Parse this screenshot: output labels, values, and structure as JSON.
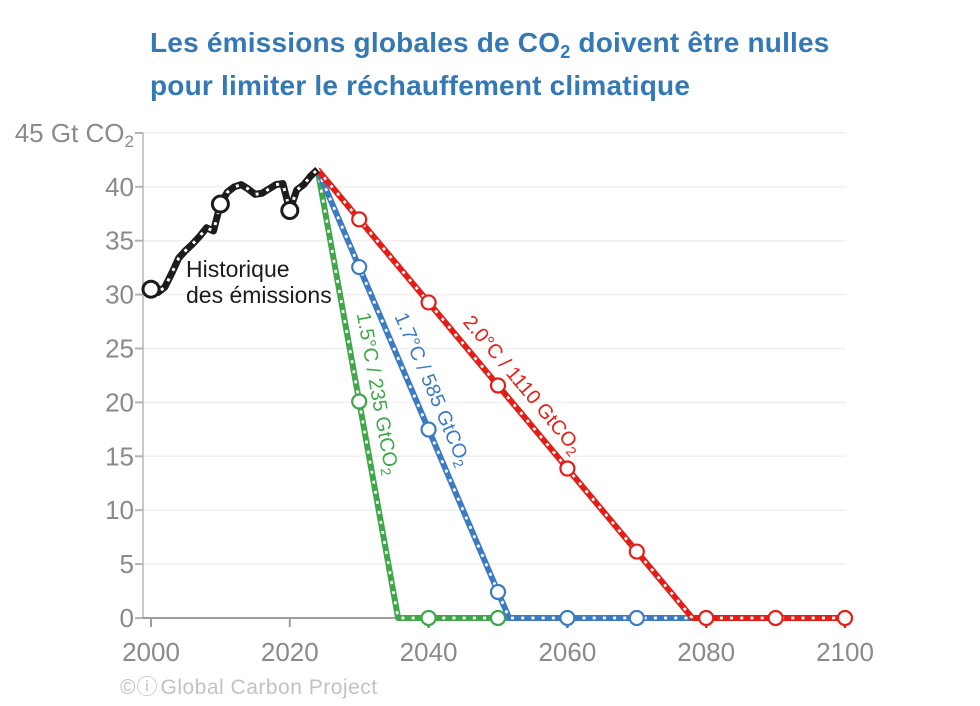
{
  "title": {
    "line1_pre": "Les émissions globales de CO",
    "line1_sub": "2",
    "line1_post": " doivent être nulles",
    "line2": "pour limiter le réchauffement climatique",
    "color": "#3478b6"
  },
  "attribution": {
    "icons": "©ⓘ",
    "text": "Global Carbon Project",
    "color": "#c2c2c2"
  },
  "chart_data": {
    "type": "line",
    "title": "Les émissions globales de CO2 doivent être nulles pour limiter le réchauffement climatique",
    "ylabel_top_main": "45 Gt CO",
    "ylabel_top_sub": "2",
    "y_axis": {
      "range": [
        0,
        45
      ],
      "ticks": [
        0,
        5,
        10,
        15,
        20,
        25,
        30,
        35,
        40,
        45
      ],
      "grid": true
    },
    "x_axis": {
      "range": [
        2000,
        2100
      ],
      "ticks": [
        2000,
        2020,
        2040,
        2060,
        2080,
        2100
      ]
    },
    "historical": {
      "label_line1": "Historique",
      "label_line2": "des émissions",
      "color": "#1c1c1c",
      "years": [
        2000,
        2001,
        2002,
        2003,
        2004,
        2005,
        2006,
        2007,
        2008,
        2009,
        2010,
        2011,
        2012,
        2013,
        2014,
        2015,
        2016,
        2017,
        2018,
        2019,
        2020,
        2021,
        2022,
        2023,
        2024
      ],
      "values": [
        30.5,
        30.2,
        30.7,
        32.0,
        33.4,
        34.1,
        34.7,
        35.4,
        36.2,
        35.9,
        38.4,
        39.5,
        40.0,
        40.2,
        39.8,
        39.3,
        39.4,
        39.8,
        40.2,
        40.3,
        37.8,
        39.7,
        40.2,
        41.0,
        41.6
      ],
      "marker_years": [
        2000,
        2010,
        2020
      ]
    },
    "scenarios": [
      {
        "id": "scenario-1-5C",
        "label_main": "1.5°C / 235 GtCO",
        "label_sub": "2",
        "temperature": "1.5°C",
        "budget_gtco2": 235,
        "color": "#3fa74a",
        "start_year": 2024,
        "start_value": 41.6,
        "zero_year": 2035.6,
        "flat_until": 2051.6,
        "marker_years": [
          2030,
          2040,
          2050
        ]
      },
      {
        "id": "scenario-1-7C",
        "label_main": "1.7°C / 585 GtCO",
        "label_sub": "2",
        "temperature": "1.7°C",
        "budget_gtco2": 585,
        "color": "#3c7bc1",
        "start_year": 2024,
        "start_value": 41.6,
        "zero_year": 2051.6,
        "flat_until": 2078,
        "marker_years": [
          2030,
          2040,
          2050,
          2060,
          2070
        ]
      },
      {
        "id": "scenario-2-0C",
        "label_main": "2.0°C / 1110 GtCO",
        "label_sub": "2",
        "temperature": "2.0°C",
        "budget_gtco2": 1110,
        "color": "#e41e17",
        "start_year": 2024,
        "start_value": 41.6,
        "zero_year": 2078,
        "flat_until": 2100,
        "marker_years": [
          2030,
          2040,
          2050,
          2060,
          2070,
          2080,
          2090,
          2100
        ]
      }
    ],
    "axis_ticks_gray_years": [
      2000,
      2020
    ],
    "axis_ticks_colored": [
      {
        "year": 2040,
        "color": "#3fa74a"
      },
      {
        "year": 2060,
        "color": "#3c7bc1"
      },
      {
        "year": 2080,
        "color": "#e41e17"
      },
      {
        "year": 2100,
        "color": "#e41e17"
      }
    ],
    "colors": {
      "grid": "#efefef",
      "y_axis_line": "#c9c9c9",
      "x_axis_line": "#9e9e9e",
      "tick_label": "#8a8a8a"
    }
  }
}
